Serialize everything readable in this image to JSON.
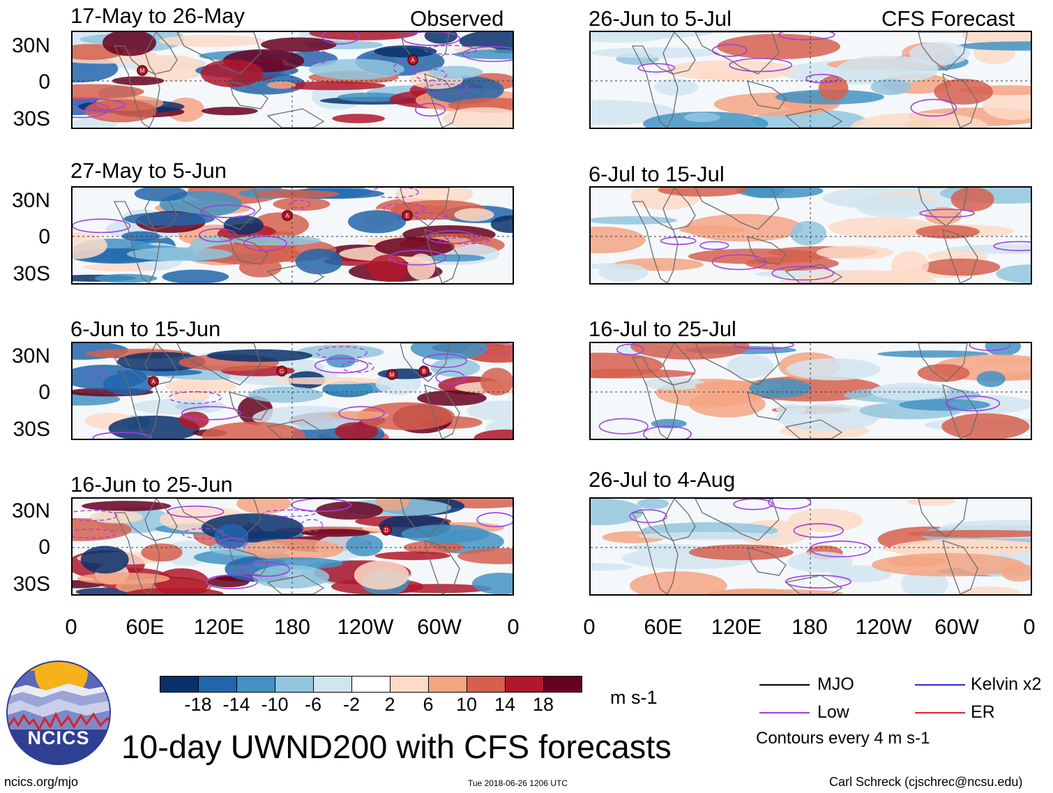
{
  "panels_left": [
    {
      "title": "17-May to 26-May",
      "corner": "Observed",
      "markers": [
        "M",
        "A"
      ]
    },
    {
      "title": "27-May to 5-Jun",
      "corner": "",
      "markers": [
        "E",
        "A"
      ]
    },
    {
      "title": "6-Jun to 15-Jun",
      "corner": "",
      "markers": [
        "G",
        "M",
        "A",
        "B"
      ]
    },
    {
      "title": "16-Jun to 25-Jun",
      "corner": "",
      "markers": [
        "D"
      ]
    }
  ],
  "panels_right": [
    {
      "title": "26-Jun to 5-Jul",
      "corner": "CFS Forecast"
    },
    {
      "title": "6-Jul to 15-Jul",
      "corner": ""
    },
    {
      "title": "16-Jul to 25-Jul",
      "corner": ""
    },
    {
      "title": "26-Jul to 4-Aug",
      "corner": ""
    }
  ],
  "y_labels": [
    "30N",
    "0",
    "30S"
  ],
  "x_labels": [
    "0",
    "60E",
    "120E",
    "180",
    "120W",
    "60W",
    "0"
  ],
  "colorbar": {
    "colors": [
      "#08306b",
      "#2166ac",
      "#4393c3",
      "#92c5de",
      "#d1e5f0",
      "#ffffff",
      "#fddbc7",
      "#f4a582",
      "#d6604d",
      "#b2182b",
      "#67001f"
    ],
    "ticks": [
      "-18",
      "-14",
      "-10",
      "-6",
      "-2",
      "2",
      "6",
      "10",
      "14",
      "18"
    ],
    "units": "m s-1"
  },
  "legend": {
    "mjo": "MJO",
    "kelvin": "Kelvin x2",
    "low": "Low",
    "er": "ER",
    "contours": "Contours every 4 m s-1",
    "colors": {
      "mjo": "#000000",
      "kelvin": "#2b2bd6",
      "low": "#a23ee0",
      "er": "#e0202a"
    }
  },
  "title": "10-day UWND200 with CFS forecasts",
  "logo_text": "NCICS",
  "footer": {
    "url": "ncics.org/mjo",
    "timestamp": "Tue 2018-06-26 1206 UTC",
    "credit": "Carl Schreck (cjschrec@ncsu.edu)"
  }
}
